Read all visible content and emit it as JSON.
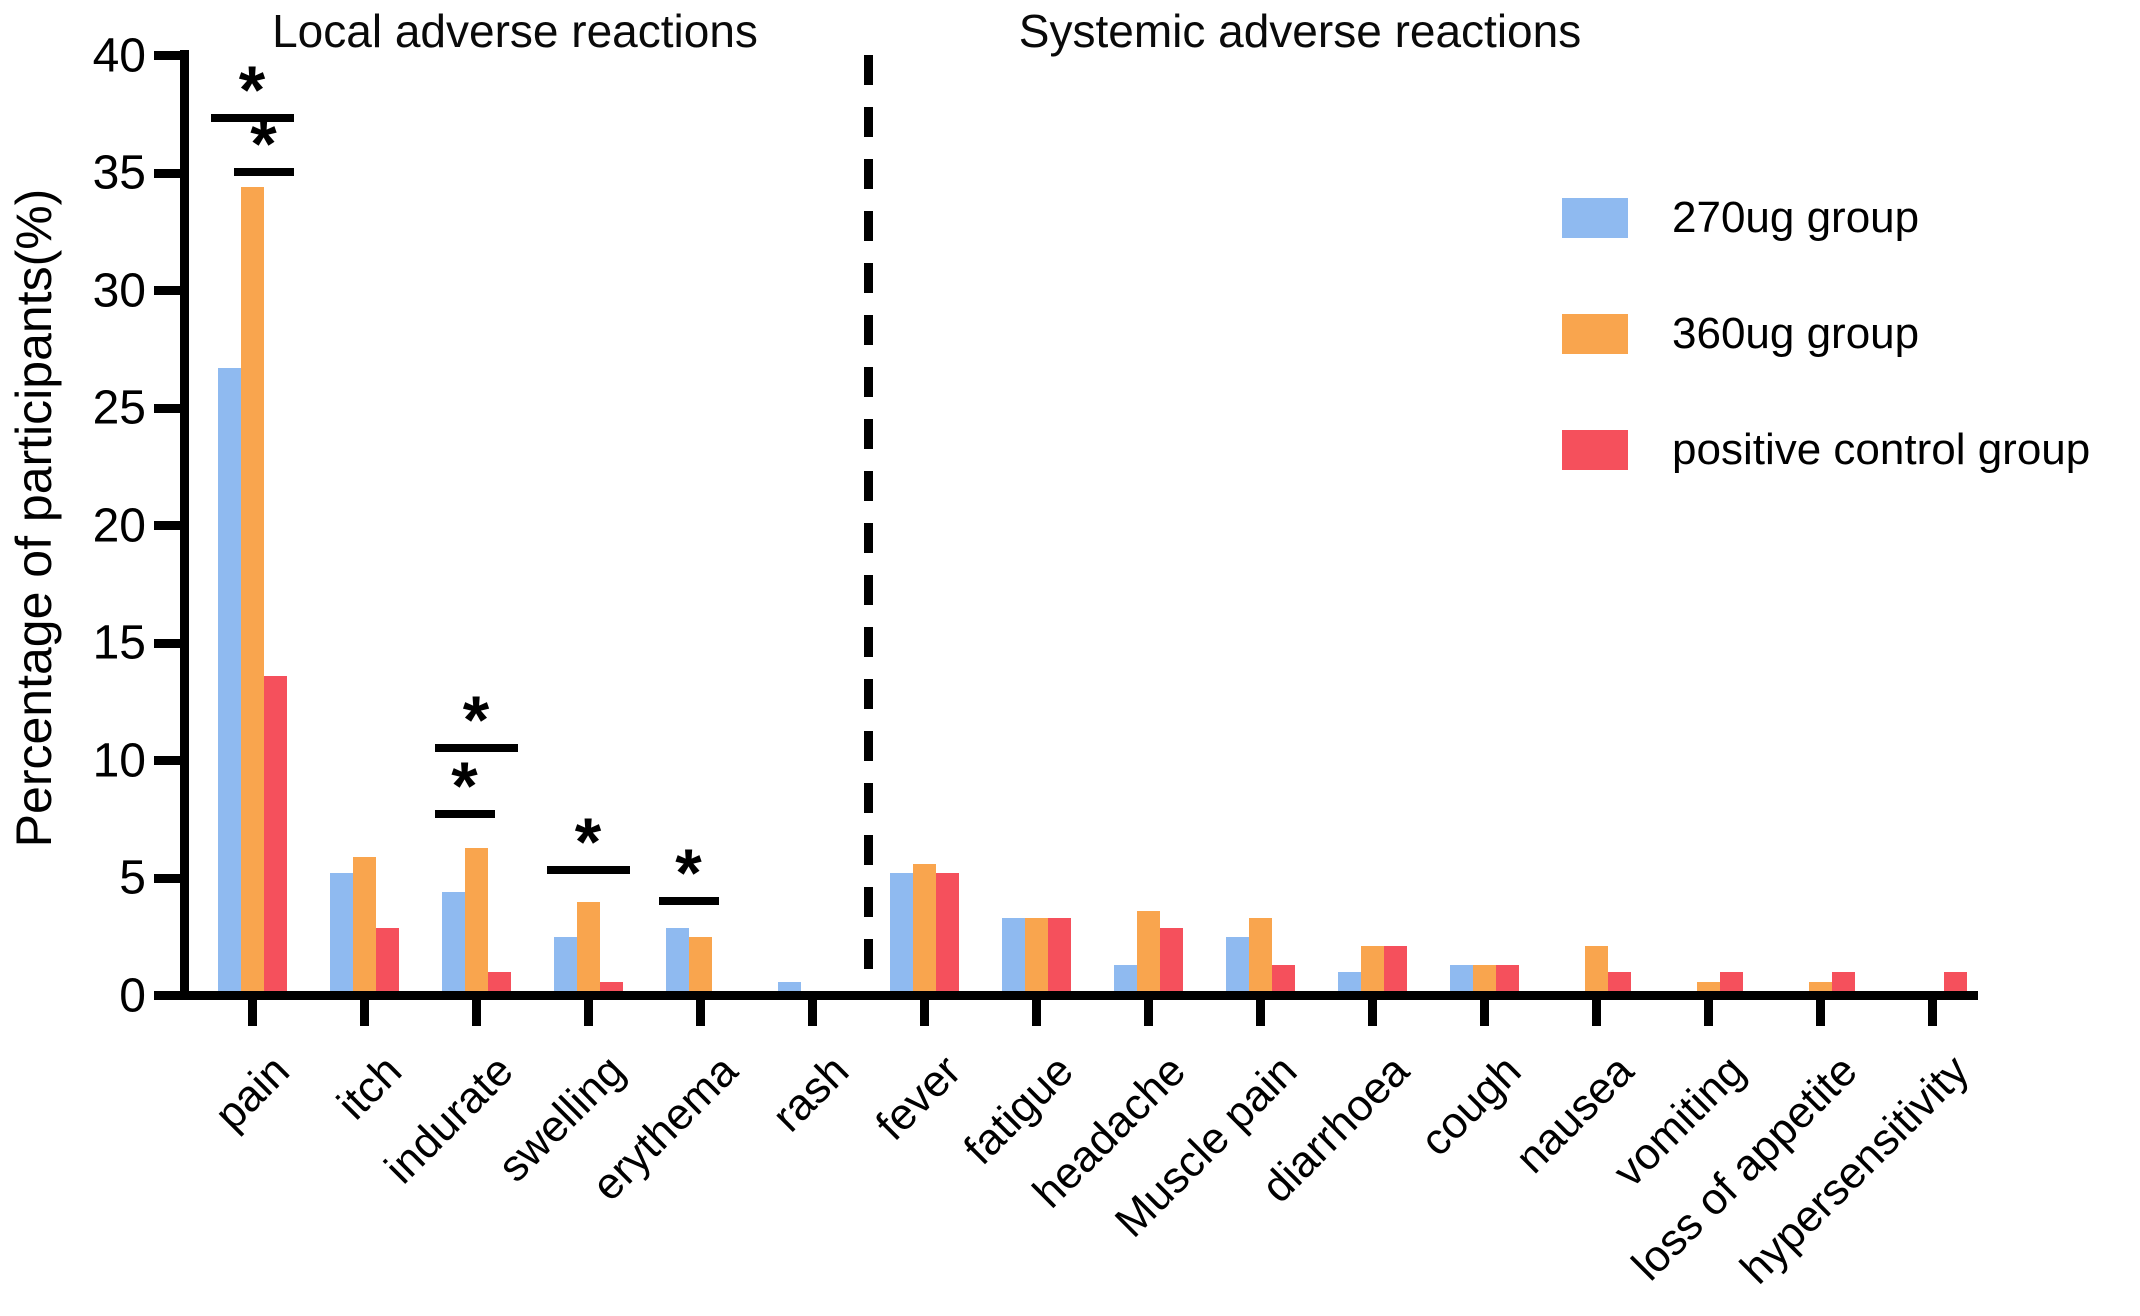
{
  "figure": {
    "background": "#ffffff"
  },
  "titles": {
    "local_section": "Local adverse reactions",
    "systemic_section": "Systemic adverse reactions"
  },
  "y_axis": {
    "title": "Percentage of participants(%)",
    "tick_labels": [
      "0",
      "5",
      "10",
      "15",
      "20",
      "25",
      "30",
      "35",
      "40"
    ]
  },
  "legend": {
    "items": [
      {
        "label": "270ug group",
        "color": "#8FBAF0"
      },
      {
        "label": "360ug group",
        "color": "#F9A54E"
      },
      {
        "label": "positive control group",
        "color": "#F5505C"
      }
    ]
  },
  "chart_data": {
    "type": "bar",
    "title": "",
    "ylabel": "Percentage of participants(%)",
    "ylim": [
      0,
      40
    ],
    "yticks": [
      0,
      5,
      10,
      15,
      20,
      25,
      30,
      35,
      40
    ],
    "grid": false,
    "legend_position": "upper right",
    "categories": [
      "pain",
      "itch",
      "indurate",
      "swelling",
      "erythema",
      "rash",
      "fever",
      "fatigue",
      "headache",
      "Muscle pain",
      "diarrhoea",
      "cough",
      "nausea",
      "vomiting",
      "loss of appetite",
      "hypersensitivity"
    ],
    "sections": [
      {
        "label": "Local adverse reactions",
        "categories": [
          "pain",
          "itch",
          "indurate",
          "swelling",
          "erythema",
          "rash"
        ]
      },
      {
        "label": "Systemic adverse reactions",
        "categories": [
          "fever",
          "fatigue",
          "headache",
          "Muscle pain",
          "diarrhoea",
          "cough",
          "nausea",
          "vomiting",
          "loss of appetite",
          "hypersensitivity"
        ]
      }
    ],
    "divider_after_category": "rash",
    "series": [
      {
        "name": "270ug group",
        "color": "#8FBAF0",
        "values": [
          26.5,
          5.0,
          4.2,
          2.3,
          2.7,
          0.4,
          5.0,
          3.1,
          1.1,
          2.3,
          0.8,
          1.1,
          0,
          0,
          0,
          0
        ]
      },
      {
        "name": "360ug group",
        "color": "#F9A54E",
        "values": [
          34.2,
          5.7,
          6.1,
          3.8,
          2.3,
          0,
          5.4,
          3.1,
          3.4,
          3.1,
          1.9,
          1.1,
          1.9,
          0.4,
          0.4,
          0
        ]
      },
      {
        "name": "positive control group",
        "color": "#F5505C",
        "values": [
          13.4,
          2.7,
          0.8,
          0.4,
          0,
          0,
          5.0,
          3.1,
          2.7,
          1.1,
          1.9,
          1.1,
          0.8,
          0.8,
          0.8,
          0.8
        ]
      }
    ],
    "significance": [
      {
        "category": "pain",
        "y_pct": 37.5,
        "from_series": 0,
        "to_series": 2,
        "marker": "*"
      },
      {
        "category": "pain",
        "y_pct": 35.2,
        "from_series": 1,
        "to_series": 2,
        "marker": "*"
      },
      {
        "category": "indurate",
        "y_pct": 10.7,
        "from_series": 0,
        "to_series": 2,
        "marker": "*"
      },
      {
        "category": "indurate",
        "y_pct": 7.9,
        "from_series": 0,
        "to_series": 1,
        "marker": "*"
      },
      {
        "category": "swelling",
        "y_pct": 5.5,
        "from_series": 0,
        "to_series": 2,
        "marker": "*"
      },
      {
        "category": "erythema",
        "y_pct": 4.2,
        "from_series": 0,
        "to_series": 1,
        "marker": "*"
      }
    ]
  }
}
